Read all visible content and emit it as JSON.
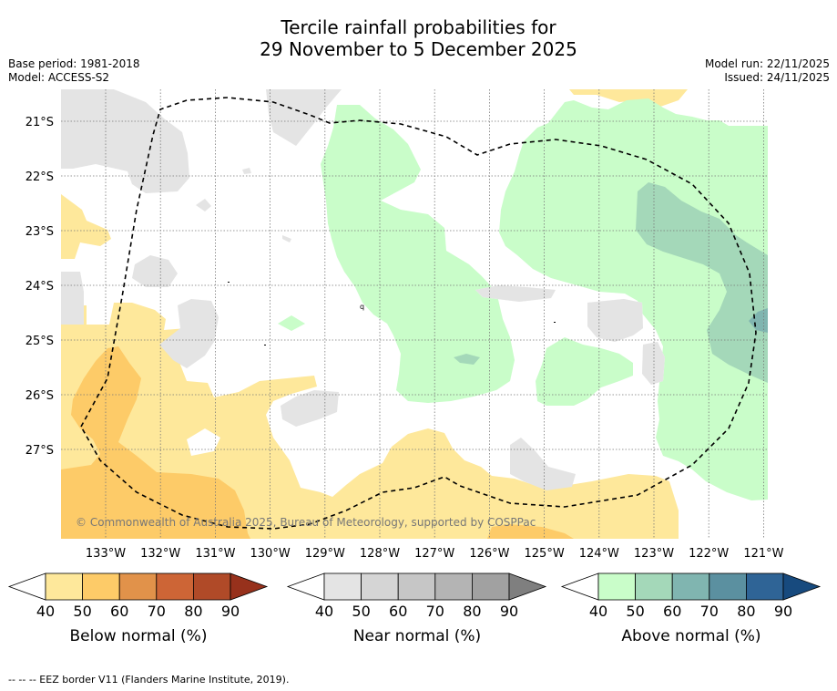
{
  "title": {
    "line1": "Tercile rainfall probabilities for",
    "line2": "29 November to 5 December 2025"
  },
  "meta": {
    "base_period": "Base period: 1981-2018",
    "model": "Model: ACCESS-S2",
    "model_run": "Model run: 22/11/2025",
    "issued": "Issued: 24/11/2025"
  },
  "map": {
    "lon_labels": [
      "133°W",
      "132°W",
      "131°W",
      "130°W",
      "129°W",
      "128°W",
      "127°W",
      "126°W",
      "125°W",
      "124°W",
      "123°W",
      "122°W",
      "121°W"
    ],
    "lat_labels": [
      "21°S",
      "22°S",
      "23°S",
      "24°S",
      "25°S",
      "26°S",
      "27°S"
    ],
    "copyright": "© Commonwealth of Australia 2025, Bureau of Meteorology, supported by COSPPac",
    "island_glyph": "q"
  },
  "colorbars": {
    "ticks": [
      "40",
      "50",
      "60",
      "70",
      "80",
      "90"
    ],
    "below": {
      "label": "Below normal (%)",
      "colors": [
        "#fee89b",
        "#fdcb68",
        "#e1924a",
        "#cd6536",
        "#b04a28",
        "#97311c"
      ]
    },
    "near": {
      "label": "Near normal (%)",
      "colors": [
        "#e4e4e4",
        "#d5d5d5",
        "#c6c6c6",
        "#b4b4b4",
        "#a1a1a1",
        "#7f7f7f"
      ]
    },
    "above": {
      "label": "Above normal (%)",
      "colors": [
        "#c9fdc9",
        "#a4d8b9",
        "#80b5b0",
        "#5b90a0",
        "#2f6496",
        "#174a7e"
      ]
    }
  },
  "footnote": "--  --  -- EEZ border V11 (Flanders Marine Institute, 2019)."
}
